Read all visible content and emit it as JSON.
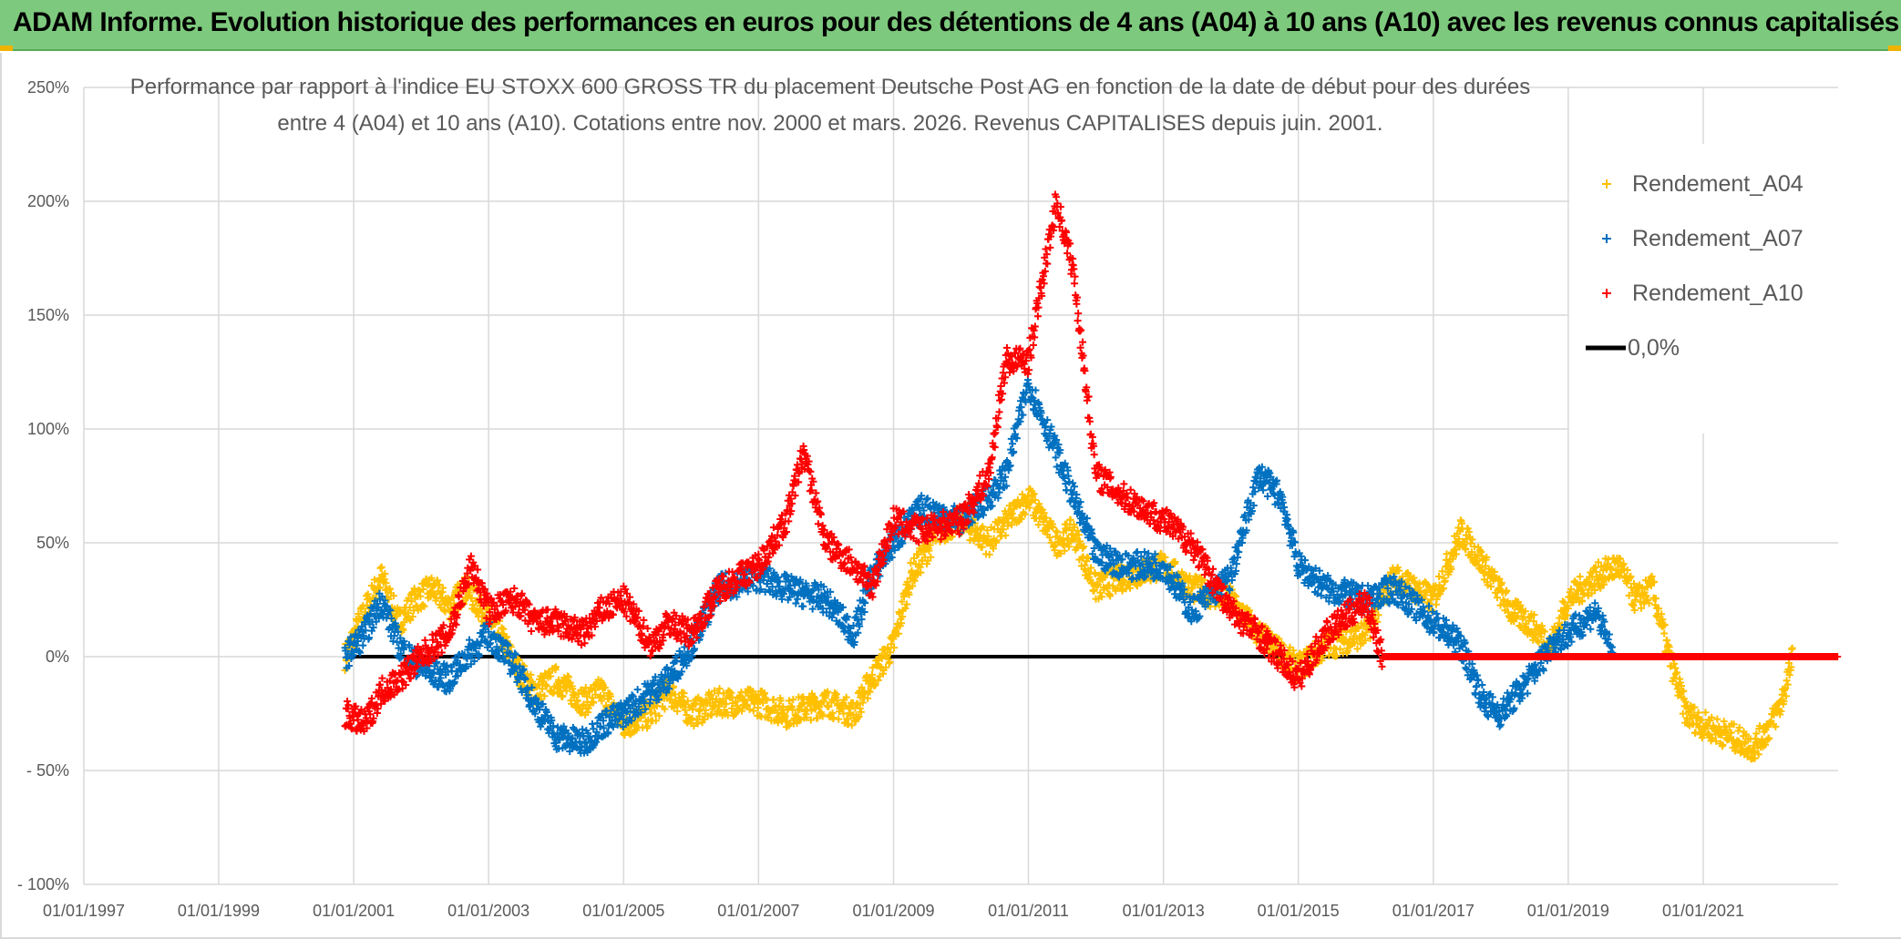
{
  "banner": {
    "title": "ADAM Informe. Evolution historique des performances en euros pour des détentions de 4 ans (A04) à 10 ans (A10) avec les revenus connus capitalisés"
  },
  "colors": {
    "A04": "#ffc000",
    "A07": "#0070c0",
    "A10": "#ff0000",
    "zero_line": "#000000",
    "grid": "#d9d9d9",
    "banner": "#7dc97d"
  },
  "chart_data": {
    "type": "scatter",
    "title_line1": "Performance par rapport à l'indice EU STOXX 600 GROSS TR  du placement Deutsche Post AG en fonction de la date de début pour des durées",
    "title_line2": "entre 4 (A04) et 10 ans (A10). Cotations entre nov. 2000 et mars. 2026. Revenus CAPITALISES depuis juin. 2001.",
    "x_tick_labels": [
      "01/01/1997",
      "01/01/1999",
      "01/01/2001",
      "01/01/2003",
      "01/01/2005",
      "01/01/2007",
      "01/01/2009",
      "01/01/2011",
      "01/01/2013",
      "01/01/2015",
      "01/01/2017",
      "01/01/2019",
      "01/01/2021"
    ],
    "xlim": [
      "1997-01-01",
      "2023-01-01"
    ],
    "y_tick_labels": [
      "250%",
      "200%",
      "150%",
      "100%",
      "50%",
      "0%",
      "- 50%",
      "- 100%"
    ],
    "y_tick_values": [
      250,
      200,
      150,
      100,
      50,
      0,
      -50,
      -100
    ],
    "ylim": [
      -100,
      250
    ],
    "grid": true,
    "legend_position": "top-right",
    "legend": [
      "Rendement_A04",
      "Rendement_A07",
      "Rendement_A10",
      "0,0%"
    ],
    "series": [
      {
        "name": "Rendement_A04",
        "color": "#ffc000",
        "points": [
          [
            "2000-11-15",
            0
          ],
          [
            "2001-03-01",
            20
          ],
          [
            "2001-06-01",
            35
          ],
          [
            "2001-09-01",
            15
          ],
          [
            "2001-12-01",
            25
          ],
          [
            "2002-03-01",
            30
          ],
          [
            "2002-06-01",
            22
          ],
          [
            "2002-09-01",
            30
          ],
          [
            "2002-12-01",
            20
          ],
          [
            "2003-03-01",
            10
          ],
          [
            "2003-06-01",
            -5
          ],
          [
            "2003-09-01",
            -15
          ],
          [
            "2004-01-01",
            -10
          ],
          [
            "2004-06-01",
            -20
          ],
          [
            "2004-09-01",
            -15
          ],
          [
            "2005-01-01",
            -30
          ],
          [
            "2005-06-01",
            -25
          ],
          [
            "2005-09-01",
            -15
          ],
          [
            "2006-01-01",
            -25
          ],
          [
            "2006-06-01",
            -20
          ],
          [
            "2007-01-01",
            -20
          ],
          [
            "2007-06-01",
            -25
          ],
          [
            "2008-01-01",
            -20
          ],
          [
            "2008-06-01",
            -25
          ],
          [
            "2008-09-01",
            -10
          ],
          [
            "2009-01-01",
            5
          ],
          [
            "2009-04-01",
            35
          ],
          [
            "2009-09-01",
            55
          ],
          [
            "2010-01-01",
            60
          ],
          [
            "2010-06-01",
            50
          ],
          [
            "2011-01-01",
            70
          ],
          [
            "2011-06-01",
            50
          ],
          [
            "2011-09-01",
            55
          ],
          [
            "2012-01-01",
            30
          ],
          [
            "2012-06-01",
            35
          ],
          [
            "2013-01-01",
            40
          ],
          [
            "2013-06-01",
            30
          ],
          [
            "2014-01-01",
            25
          ],
          [
            "2014-06-01",
            10
          ],
          [
            "2015-01-01",
            -5
          ],
          [
            "2015-06-01",
            5
          ],
          [
            "2016-01-01",
            10
          ],
          [
            "2016-06-01",
            35
          ],
          [
            "2017-01-01",
            25
          ],
          [
            "2017-06-01",
            55
          ],
          [
            "2017-10-01",
            40
          ],
          [
            "2018-03-01",
            20
          ],
          [
            "2018-06-01",
            15
          ],
          [
            "2018-10-01",
            5
          ],
          [
            "2019-01-01",
            25
          ],
          [
            "2019-06-01",
            35
          ],
          [
            "2019-10-01",
            40
          ],
          [
            "2020-01-01",
            25
          ],
          [
            "2020-04-01",
            30
          ],
          [
            "2020-07-01",
            0
          ],
          [
            "2020-10-01",
            -25
          ],
          [
            "2021-01-01",
            -30
          ],
          [
            "2021-06-01",
            -35
          ],
          [
            "2021-10-01",
            -40
          ],
          [
            "2022-01-01",
            -30
          ],
          [
            "2022-03-01",
            -20
          ],
          [
            "2022-05-01",
            0
          ],
          [
            "2022-08-01",
            0
          ],
          [
            "2022-12-01",
            0
          ]
        ]
      },
      {
        "name": "Rendement_A07",
        "color": "#0070c0",
        "points": [
          [
            "2000-11-15",
            0
          ],
          [
            "2001-03-01",
            10
          ],
          [
            "2001-06-01",
            25
          ],
          [
            "2001-09-01",
            5
          ],
          [
            "2002-01-01",
            -5
          ],
          [
            "2002-06-01",
            -10
          ],
          [
            "2002-09-01",
            0
          ],
          [
            "2003-01-01",
            10
          ],
          [
            "2003-06-01",
            -5
          ],
          [
            "2003-09-01",
            -20
          ],
          [
            "2004-01-01",
            -35
          ],
          [
            "2004-06-01",
            -38
          ],
          [
            "2004-09-01",
            -30
          ],
          [
            "2005-01-01",
            -25
          ],
          [
            "2005-06-01",
            -15
          ],
          [
            "2005-09-01",
            -10
          ],
          [
            "2006-01-01",
            5
          ],
          [
            "2006-06-01",
            30
          ],
          [
            "2007-01-01",
            35
          ],
          [
            "2007-06-01",
            30
          ],
          [
            "2008-01-01",
            25
          ],
          [
            "2008-06-01",
            10
          ],
          [
            "2008-09-01",
            35
          ],
          [
            "2009-01-01",
            50
          ],
          [
            "2009-06-01",
            65
          ],
          [
            "2010-01-01",
            60
          ],
          [
            "2010-06-01",
            70
          ],
          [
            "2010-09-01",
            80
          ],
          [
            "2011-01-01",
            120
          ],
          [
            "2011-06-01",
            90
          ],
          [
            "2011-09-01",
            70
          ],
          [
            "2012-01-01",
            45
          ],
          [
            "2012-06-01",
            40
          ],
          [
            "2013-01-01",
            40
          ],
          [
            "2013-06-01",
            20
          ],
          [
            "2014-01-01",
            35
          ],
          [
            "2014-06-01",
            80
          ],
          [
            "2014-10-01",
            70
          ],
          [
            "2015-01-01",
            40
          ],
          [
            "2015-06-01",
            30
          ],
          [
            "2016-01-01",
            25
          ],
          [
            "2016-06-01",
            30
          ],
          [
            "2017-01-01",
            15
          ],
          [
            "2017-06-01",
            5
          ],
          [
            "2017-10-01",
            -20
          ],
          [
            "2018-01-01",
            -25
          ],
          [
            "2018-06-01",
            -10
          ],
          [
            "2018-10-01",
            5
          ],
          [
            "2019-01-01",
            10
          ],
          [
            "2019-06-01",
            20
          ],
          [
            "2019-09-01",
            0
          ]
        ]
      },
      {
        "name": "Rendement_A10",
        "color": "#ff0000",
        "points": [
          [
            "2000-11-15",
            -25
          ],
          [
            "2001-03-01",
            -30
          ],
          [
            "2001-06-01",
            -15
          ],
          [
            "2001-09-01",
            -10
          ],
          [
            "2002-01-01",
            0
          ],
          [
            "2002-06-01",
            10
          ],
          [
            "2002-10-01",
            40
          ],
          [
            "2003-01-01",
            20
          ],
          [
            "2003-06-01",
            25
          ],
          [
            "2003-09-01",
            15
          ],
          [
            "2004-01-01",
            15
          ],
          [
            "2004-06-01",
            10
          ],
          [
            "2004-09-01",
            20
          ],
          [
            "2005-01-01",
            25
          ],
          [
            "2005-06-01",
            5
          ],
          [
            "2005-09-01",
            15
          ],
          [
            "2006-01-01",
            10
          ],
          [
            "2006-06-01",
            30
          ],
          [
            "2007-01-01",
            40
          ],
          [
            "2007-06-01",
            60
          ],
          [
            "2007-09-01",
            90
          ],
          [
            "2008-01-01",
            50
          ],
          [
            "2008-06-01",
            40
          ],
          [
            "2008-09-01",
            30
          ],
          [
            "2009-01-01",
            60
          ],
          [
            "2009-06-01",
            55
          ],
          [
            "2010-01-01",
            60
          ],
          [
            "2010-06-01",
            80
          ],
          [
            "2010-09-01",
            130
          ],
          [
            "2011-01-01",
            130
          ],
          [
            "2011-06-01",
            200
          ],
          [
            "2011-09-01",
            170
          ],
          [
            "2012-01-01",
            80
          ],
          [
            "2012-06-01",
            70
          ],
          [
            "2013-01-01",
            60
          ],
          [
            "2013-06-01",
            50
          ],
          [
            "2014-01-01",
            20
          ],
          [
            "2014-06-01",
            10
          ],
          [
            "2015-01-01",
            -10
          ],
          [
            "2015-06-01",
            10
          ],
          [
            "2016-01-01",
            25
          ],
          [
            "2016-04-01",
            0
          ],
          [
            "2022-12-31",
            0
          ]
        ]
      }
    ]
  }
}
